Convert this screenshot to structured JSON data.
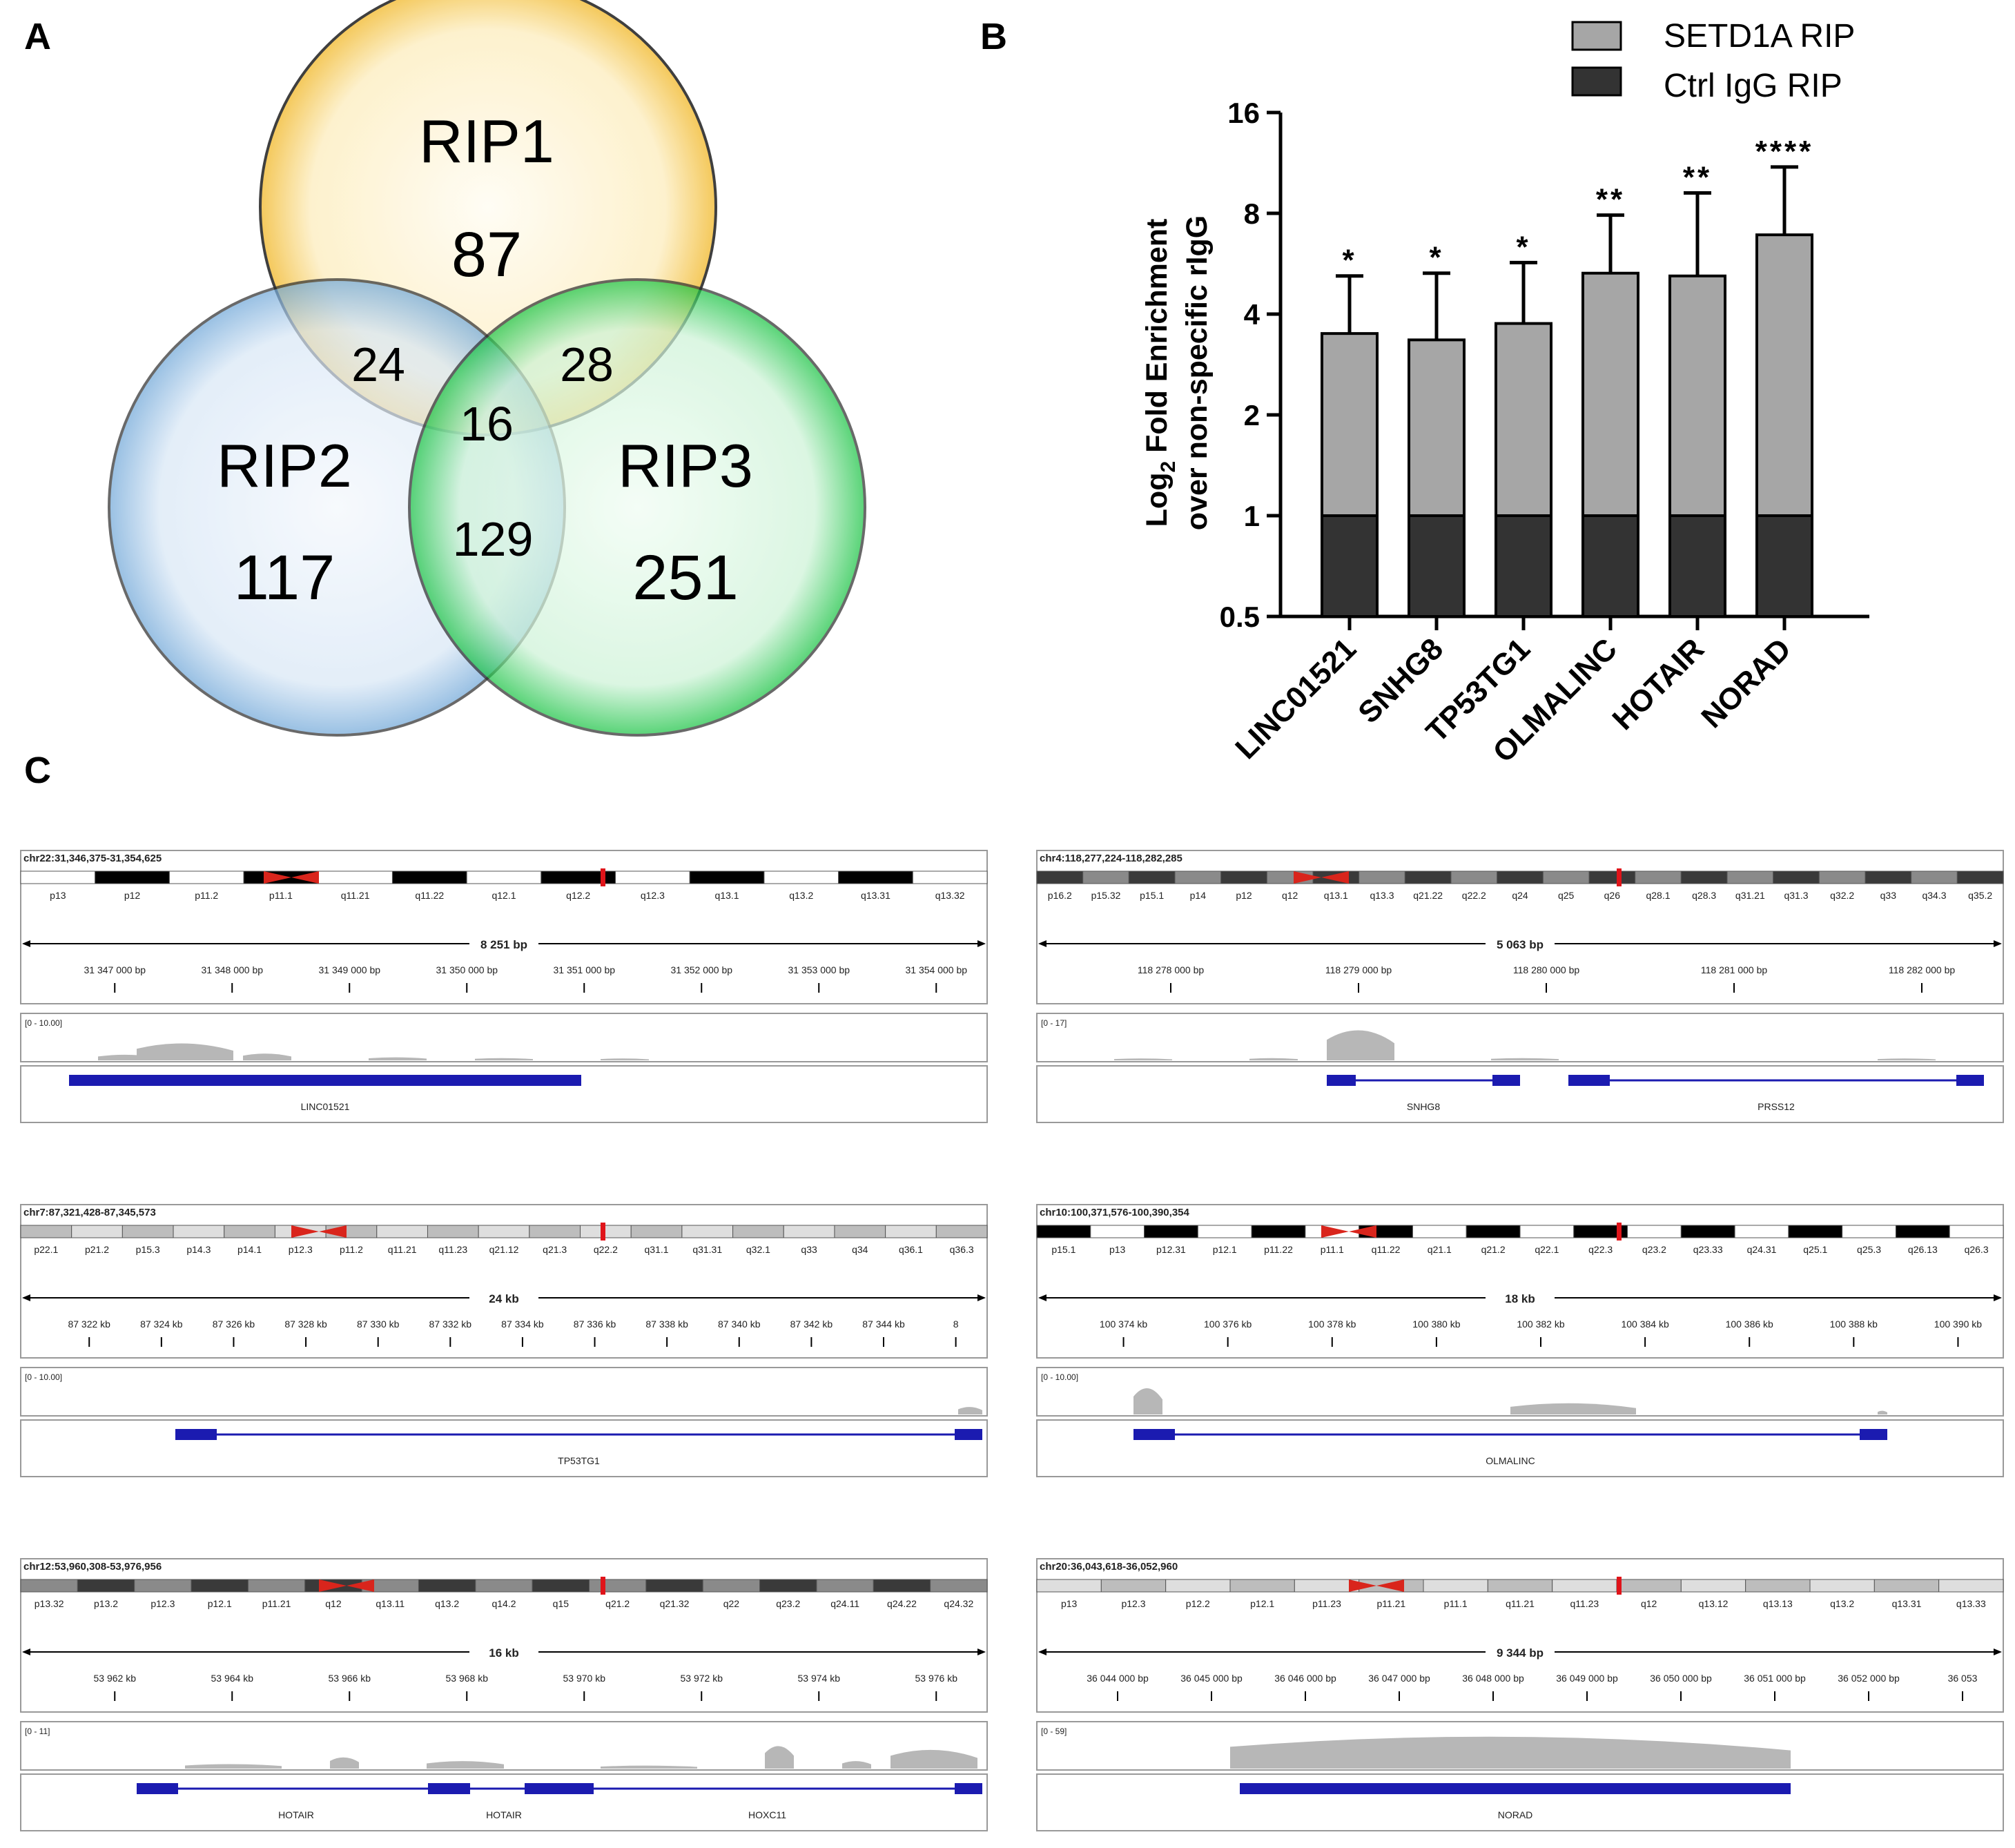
{
  "panels": {
    "a": "A",
    "b": "B",
    "c": "C"
  },
  "venn": {
    "circles": [
      {
        "label": "RIP1",
        "count": "87",
        "color": "#f5c243"
      },
      {
        "label": "RIP2",
        "count": "117",
        "color": "#7aaedb"
      },
      {
        "label": "RIP3",
        "count": "251",
        "color": "#1ec44a"
      }
    ],
    "overlaps": {
      "rip1_rip2": "24",
      "rip1_rip3": "28",
      "all": "16",
      "rip2_rip3": "129"
    }
  },
  "chart_data": {
    "type": "bar",
    "stacked": true,
    "categories": [
      "LINC01521",
      "SNHG8",
      "TP53TG1",
      "OLMALINC",
      "HOTAIR",
      "NORAD"
    ],
    "series": [
      {
        "name": "SETD1A RIP",
        "values": [
          3.5,
          3.35,
          3.75,
          5.3,
          5.2,
          6.9
        ],
        "errors_upper": [
          5.2,
          5.3,
          5.7,
          7.9,
          9.2,
          11.0
        ],
        "color": "#a6a6a6"
      },
      {
        "name": "Ctrl IgG RIP",
        "values": [
          1,
          1,
          1,
          1,
          1,
          1
        ],
        "color": "#333333"
      }
    ],
    "significance": [
      "*",
      "*",
      "*",
      "**",
      "**",
      "****"
    ],
    "ylabel_line1": "Log",
    "ylabel_sub": "2",
    "ylabel_line1_rest": " Fold Enrichment",
    "ylabel_line2": "over non-specific rIgG",
    "yscale": "log2",
    "ylim": [
      0.5,
      16
    ],
    "yticks": [
      "0.5",
      "1",
      "2",
      "4",
      "8",
      "16"
    ],
    "legend_position": "top"
  },
  "igv_tracks": [
    {
      "locus": "chr22:31,346,375-31,354,625",
      "span": "8 251 bp",
      "bands": [
        "p13",
        "p12",
        "p11.2",
        "p11.1",
        "q11.21",
        "q11.22",
        "q12.1",
        "q12.2",
        "q12.3",
        "q13.1",
        "q13.2",
        "q13.31",
        "q13.32"
      ],
      "ticks": [
        "31 347 000 bp",
        "31 348 000 bp",
        "31 349 000 bp",
        "31 350 000 bp",
        "31 351 000 bp",
        "31 352 000 bp",
        "31 353 000 bp",
        "31 354 000 bp"
      ],
      "range": "[0 - 10.00]",
      "genes": [
        "LINC01521"
      ]
    },
    {
      "locus": "chr4:118,277,224-118,282,285",
      "span": "5 063 bp",
      "bands": [
        "p16.2",
        "p15.32",
        "p15.1",
        "p14",
        "p12",
        "q12",
        "q13.1",
        "q13.3",
        "q21.22",
        "q22.2",
        "q24",
        "q25",
        "q26",
        "q28.1",
        "q28.3",
        "q31.21",
        "q31.3",
        "q32.2",
        "q33",
        "q34.3",
        "q35.2"
      ],
      "ticks": [
        "118 278 000 bp",
        "118 279 000 bp",
        "118 280 000 bp",
        "118 281 000 bp",
        "118 282 000 bp"
      ],
      "range": "[0 - 17]",
      "genes": [
        "SNHG8",
        "PRSS12"
      ]
    },
    {
      "locus": "chr7:87,321,428-87,345,573",
      "span": "24 kb",
      "bands": [
        "p22.1",
        "p21.2",
        "p15.3",
        "p14.3",
        "p14.1",
        "p12.3",
        "p11.2",
        "q11.21",
        "q11.23",
        "q21.12",
        "q21.3",
        "q22.2",
        "q31.1",
        "q31.31",
        "q32.1",
        "q33",
        "q34",
        "q36.1",
        "q36.3"
      ],
      "ticks": [
        "87 322 kb",
        "87 324 kb",
        "87 326 kb",
        "87 328 kb",
        "87 330 kb",
        "87 332 kb",
        "87 334 kb",
        "87 336 kb",
        "87 338 kb",
        "87 340 kb",
        "87 342 kb",
        "87 344 kb",
        "8"
      ],
      "range": "[0 - 10.00]",
      "genes": [
        "TP53TG1"
      ]
    },
    {
      "locus": "chr10:100,371,576-100,390,354",
      "span": "18 kb",
      "bands": [
        "p15.1",
        "p13",
        "p12.31",
        "p12.1",
        "p11.22",
        "p11.1",
        "q11.22",
        "q21.1",
        "q21.2",
        "q22.1",
        "q22.3",
        "q23.2",
        "q23.33",
        "q24.31",
        "q25.1",
        "q25.3",
        "q26.13",
        "q26.3"
      ],
      "ticks": [
        "100 374 kb",
        "100 376 kb",
        "100 378 kb",
        "100 380 kb",
        "100 382 kb",
        "100 384 kb",
        "100 386 kb",
        "100 388 kb",
        "100 390 kb"
      ],
      "range": "[0 - 10.00]",
      "genes": [
        "OLMALINC"
      ]
    },
    {
      "locus": "chr12:53,960,308-53,976,956",
      "span": "16 kb",
      "bands": [
        "p13.32",
        "p13.2",
        "p12.3",
        "p12.1",
        "p11.21",
        "q12",
        "q13.11",
        "q13.2",
        "q14.2",
        "q15",
        "q21.2",
        "q21.32",
        "q22",
        "q23.2",
        "q24.11",
        "q24.22",
        "q24.32"
      ],
      "ticks": [
        "53 962 kb",
        "53 964 kb",
        "53 966 kb",
        "53 968 kb",
        "53 970 kb",
        "53 972 kb",
        "53 974 kb",
        "53 976 kb"
      ],
      "range": "[0 - 11]",
      "genes": [
        "HOTAIR",
        "HOTAIR",
        "HOXC11"
      ]
    },
    {
      "locus": "chr20:36,043,618-36,052,960",
      "span": "9 344 bp",
      "bands": [
        "p13",
        "p12.3",
        "p12.2",
        "p12.1",
        "p11.23",
        "p11.21",
        "p11.1",
        "q11.21",
        "q11.23",
        "q12",
        "q13.12",
        "q13.13",
        "q13.2",
        "q13.31",
        "q13.33"
      ],
      "ticks": [
        "36 044 000 bp",
        "36 045 000 bp",
        "36 046 000 bp",
        "36 047 000 bp",
        "36 048 000 bp",
        "36 049 000 bp",
        "36 050 000 bp",
        "36 051 000 bp",
        "36 052 000 bp",
        "36 053"
      ],
      "range": "[0 - 59]",
      "genes": [
        "NORAD"
      ]
    }
  ]
}
